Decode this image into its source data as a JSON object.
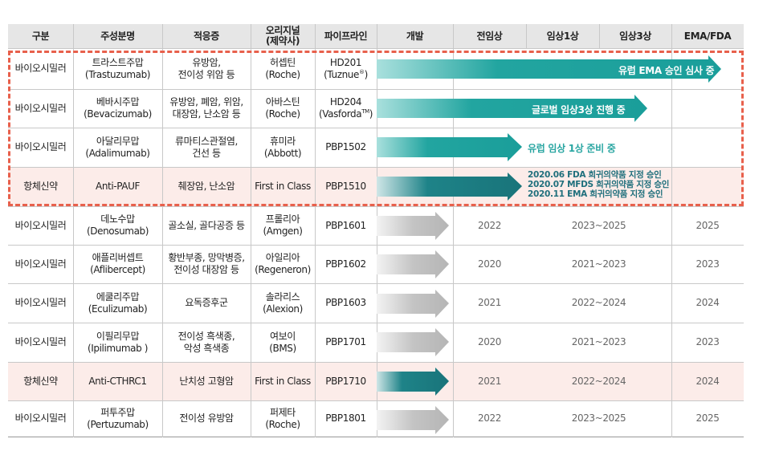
{
  "headers": [
    "구분",
    "주성분명",
    "적응증",
    "오리지널\n(제약사)",
    "파이프라인",
    "개발",
    "전임상",
    "임상1상",
    "임상3상",
    "EMA/FDA"
  ],
  "rows": [
    {
      "category": "바이오시밀러",
      "ingredient_ko": "트라스트주맙",
      "ingredient_en": "(Trastuzumab)",
      "indication_1": "유방암,",
      "indication_2": "전이성 위암 등",
      "original_1": "허셉틴",
      "original_2": "(Roche)",
      "pipeline_1": "HD201",
      "pipeline_2": "(Tuznue",
      "pipeline_sup": "®",
      "pipeline_end": ")",
      "bar_label": "유럽 EMA 승인 심사 중"
    },
    {
      "category": "바이오시밀러",
      "ingredient_ko": "베바시주맙",
      "ingredient_en": "(Bevacizumab)",
      "indication_1": "유방암, 폐암, 위암,",
      "indication_2": "대장암, 난소암 등",
      "original_1": "아바스틴",
      "original_2": "(Roche)",
      "pipeline_1": "HD204",
      "pipeline_2": "(Vasforda",
      "pipeline_sup": "TM",
      "pipeline_end": ")",
      "bar_label": "글로벌 임상3상 진행 중"
    },
    {
      "category": "바이오시밀러",
      "ingredient_ko": "아달리무맙",
      "ingredient_en": "(Adalimumab)",
      "indication_1": "류마티스관절염,",
      "indication_2": "건선 등",
      "original_1": "휴미라",
      "original_2": "(Abbott)",
      "pipeline": "PBP1502",
      "status_label": "유럽 임상 1상 준비 중"
    },
    {
      "category": "항체신약",
      "ingredient": "Anti-PAUF",
      "indication": "췌장암, 난소암",
      "original": "First in Class",
      "pipeline": "PBP1510",
      "notes": [
        {
          "date": "2020.06",
          "text": " FDA 희귀의약품 지정 승인"
        },
        {
          "date": "2020.07",
          "text": " MFDS 희귀의약품 지정 승인"
        },
        {
          "date": "2020.11",
          "text": " EMA 희귀의약품 지정 승인"
        }
      ]
    },
    {
      "category": "바이오시밀러",
      "ingredient_ko": "데노수맙",
      "ingredient_en": "(Denosumab)",
      "indication": "골소실, 골다공증 등",
      "original_1": "프롤리아",
      "original_2": "(Amgen)",
      "pipeline": "PBP1601",
      "preclinical": "2022",
      "clinical": "2023~2025",
      "approval": "2025"
    },
    {
      "category": "바이오시밀러",
      "ingredient_ko": "애플리버셉트",
      "ingredient_en": "(Aflibercept)",
      "indication_1": "황반부종, 망막병증,",
      "indication_2": "전이성 대장암 등",
      "original_1": "아일리아",
      "original_2": "(Regeneron)",
      "pipeline": "PBP1602",
      "preclinical": "2020",
      "clinical": "2021~2023",
      "approval": "2023"
    },
    {
      "category": "바이오시밀러",
      "ingredient_ko": "에쿨리주맙",
      "ingredient_en": "(Eculizumab)",
      "indication": "요독증후군",
      "original_1": "솔라리스",
      "original_2": "(Alexion)",
      "pipeline": "PBP1603",
      "preclinical": "2021",
      "clinical": "2022~2024",
      "approval": "2024"
    },
    {
      "category": "바이오시밀러",
      "ingredient_ko": "이필리무맙",
      "ingredient_en": "(Ipilimumab )",
      "indication_1": "전이성 흑색종,",
      "indication_2": "악성 흑색종",
      "original_1": "여보이",
      "original_2": "(BMS)",
      "pipeline": "PBP1701",
      "preclinical": "2020",
      "clinical": "2021~2023",
      "approval": "2023"
    },
    {
      "category": "항체신약",
      "ingredient": "Anti-CTHRC1",
      "indication": "난치성 고형암",
      "original": "First in Class",
      "pipeline": "PBP1710",
      "preclinical": "2021",
      "clinical": "2022~2024",
      "approval": "2024"
    },
    {
      "category": "바이오시밀러",
      "ingredient_ko": "퍼투주맙",
      "ingredient_en": "(Pertuzumab)",
      "indication": "전이성 유방암",
      "original_1": "퍼제타",
      "original_2": "(Roche)",
      "pipeline": "PBP1801",
      "preclinical": "2022",
      "clinical": "2023~2025",
      "approval": "2025"
    }
  ],
  "colors": {
    "teal": "#1a9e9a",
    "teal_light": "#8fd6d2",
    "teal_dark": "#1b7a7c",
    "gray": "#b9b9b9",
    "pink": "#fcece9",
    "dash": "#e8604c",
    "header_bg": "#e6e6e6"
  }
}
